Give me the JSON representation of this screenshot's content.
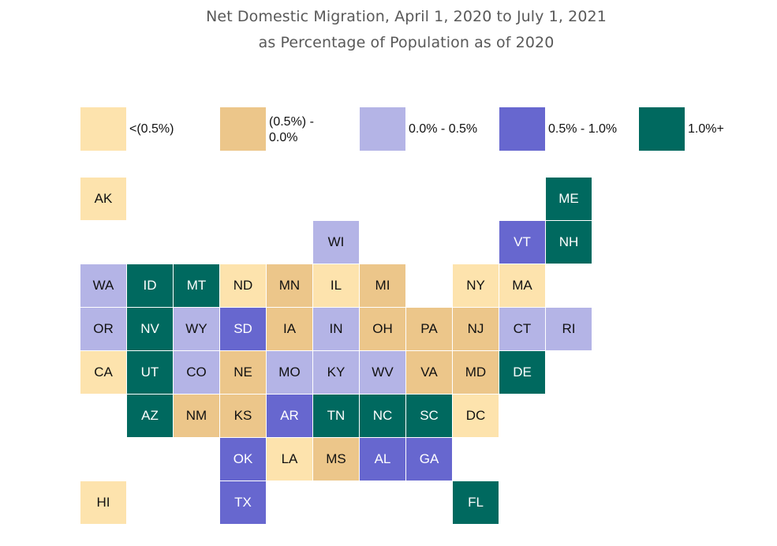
{
  "title": {
    "line1": "Net Domestic Migration, April 1, 2020 to July 1, 2021",
    "line2": "as Percentage of Population as of 2020"
  },
  "categories": {
    "lt_neg05": {
      "label": "<(0.5%)",
      "color": "#fde3ad",
      "text_color": "#111111"
    },
    "neg05_0": {
      "label": "(0.5%) - 0.0%",
      "color": "#ecc68a",
      "text_color": "#111111"
    },
    "p0_05": {
      "label": "0.0% - 0.5%",
      "color": "#b4b4e6",
      "text_color": "#111111"
    },
    "p05_10": {
      "label": "0.5% - 1.0%",
      "color": "#6767cf",
      "text_color": "#ffffff"
    },
    "p10_plus": {
      "label": "1.0%+",
      "color": "#00695f",
      "text_color": "#ffffff"
    }
  },
  "legend_order": [
    "lt_neg05",
    "neg05_0",
    "p0_05",
    "p05_10",
    "p10_plus"
  ],
  "states": [
    {
      "abbr": "AK",
      "row": 0,
      "col": 0,
      "cat": "lt_neg05"
    },
    {
      "abbr": "ME",
      "row": 0,
      "col": 10,
      "cat": "p10_plus"
    },
    {
      "abbr": "WI",
      "row": 1,
      "col": 5,
      "cat": "p0_05"
    },
    {
      "abbr": "VT",
      "row": 1,
      "col": 9,
      "cat": "p05_10"
    },
    {
      "abbr": "NH",
      "row": 1,
      "col": 10,
      "cat": "p10_plus"
    },
    {
      "abbr": "WA",
      "row": 2,
      "col": 0,
      "cat": "p0_05"
    },
    {
      "abbr": "ID",
      "row": 2,
      "col": 1,
      "cat": "p10_plus"
    },
    {
      "abbr": "MT",
      "row": 2,
      "col": 2,
      "cat": "p10_plus"
    },
    {
      "abbr": "ND",
      "row": 2,
      "col": 3,
      "cat": "lt_neg05"
    },
    {
      "abbr": "MN",
      "row": 2,
      "col": 4,
      "cat": "neg05_0"
    },
    {
      "abbr": "IL",
      "row": 2,
      "col": 5,
      "cat": "lt_neg05"
    },
    {
      "abbr": "MI",
      "row": 2,
      "col": 6,
      "cat": "neg05_0"
    },
    {
      "abbr": "NY",
      "row": 2,
      "col": 8,
      "cat": "lt_neg05"
    },
    {
      "abbr": "MA",
      "row": 2,
      "col": 9,
      "cat": "lt_neg05"
    },
    {
      "abbr": "OR",
      "row": 3,
      "col": 0,
      "cat": "p0_05"
    },
    {
      "abbr": "NV",
      "row": 3,
      "col": 1,
      "cat": "p10_plus"
    },
    {
      "abbr": "WY",
      "row": 3,
      "col": 2,
      "cat": "p0_05"
    },
    {
      "abbr": "SD",
      "row": 3,
      "col": 3,
      "cat": "p05_10"
    },
    {
      "abbr": "IA",
      "row": 3,
      "col": 4,
      "cat": "neg05_0"
    },
    {
      "abbr": "IN",
      "row": 3,
      "col": 5,
      "cat": "p0_05"
    },
    {
      "abbr": "OH",
      "row": 3,
      "col": 6,
      "cat": "neg05_0"
    },
    {
      "abbr": "PA",
      "row": 3,
      "col": 7,
      "cat": "neg05_0"
    },
    {
      "abbr": "NJ",
      "row": 3,
      "col": 8,
      "cat": "neg05_0"
    },
    {
      "abbr": "CT",
      "row": 3,
      "col": 9,
      "cat": "p0_05"
    },
    {
      "abbr": "RI",
      "row": 3,
      "col": 10,
      "cat": "p0_05"
    },
    {
      "abbr": "CA",
      "row": 4,
      "col": 0,
      "cat": "lt_neg05"
    },
    {
      "abbr": "UT",
      "row": 4,
      "col": 1,
      "cat": "p10_plus"
    },
    {
      "abbr": "CO",
      "row": 4,
      "col": 2,
      "cat": "p0_05"
    },
    {
      "abbr": "NE",
      "row": 4,
      "col": 3,
      "cat": "neg05_0"
    },
    {
      "abbr": "MO",
      "row": 4,
      "col": 4,
      "cat": "p0_05"
    },
    {
      "abbr": "KY",
      "row": 4,
      "col": 5,
      "cat": "p0_05"
    },
    {
      "abbr": "WV",
      "row": 4,
      "col": 6,
      "cat": "p0_05"
    },
    {
      "abbr": "VA",
      "row": 4,
      "col": 7,
      "cat": "neg05_0"
    },
    {
      "abbr": "MD",
      "row": 4,
      "col": 8,
      "cat": "neg05_0"
    },
    {
      "abbr": "DE",
      "row": 4,
      "col": 9,
      "cat": "p10_plus"
    },
    {
      "abbr": "AZ",
      "row": 5,
      "col": 1,
      "cat": "p10_plus"
    },
    {
      "abbr": "NM",
      "row": 5,
      "col": 2,
      "cat": "neg05_0"
    },
    {
      "abbr": "KS",
      "row": 5,
      "col": 3,
      "cat": "neg05_0"
    },
    {
      "abbr": "AR",
      "row": 5,
      "col": 4,
      "cat": "p05_10"
    },
    {
      "abbr": "TN",
      "row": 5,
      "col": 5,
      "cat": "p10_plus"
    },
    {
      "abbr": "NC",
      "row": 5,
      "col": 6,
      "cat": "p10_plus"
    },
    {
      "abbr": "SC",
      "row": 5,
      "col": 7,
      "cat": "p10_plus"
    },
    {
      "abbr": "DC",
      "row": 5,
      "col": 8,
      "cat": "lt_neg05"
    },
    {
      "abbr": "OK",
      "row": 6,
      "col": 3,
      "cat": "p05_10"
    },
    {
      "abbr": "LA",
      "row": 6,
      "col": 4,
      "cat": "lt_neg05"
    },
    {
      "abbr": "MS",
      "row": 6,
      "col": 5,
      "cat": "neg05_0"
    },
    {
      "abbr": "AL",
      "row": 6,
      "col": 6,
      "cat": "p05_10"
    },
    {
      "abbr": "GA",
      "row": 6,
      "col": 7,
      "cat": "p05_10"
    },
    {
      "abbr": "HI",
      "row": 7,
      "col": 0,
      "cat": "lt_neg05"
    },
    {
      "abbr": "TX",
      "row": 7,
      "col": 3,
      "cat": "p05_10"
    },
    {
      "abbr": "FL",
      "row": 7,
      "col": 8,
      "cat": "p10_plus"
    }
  ]
}
